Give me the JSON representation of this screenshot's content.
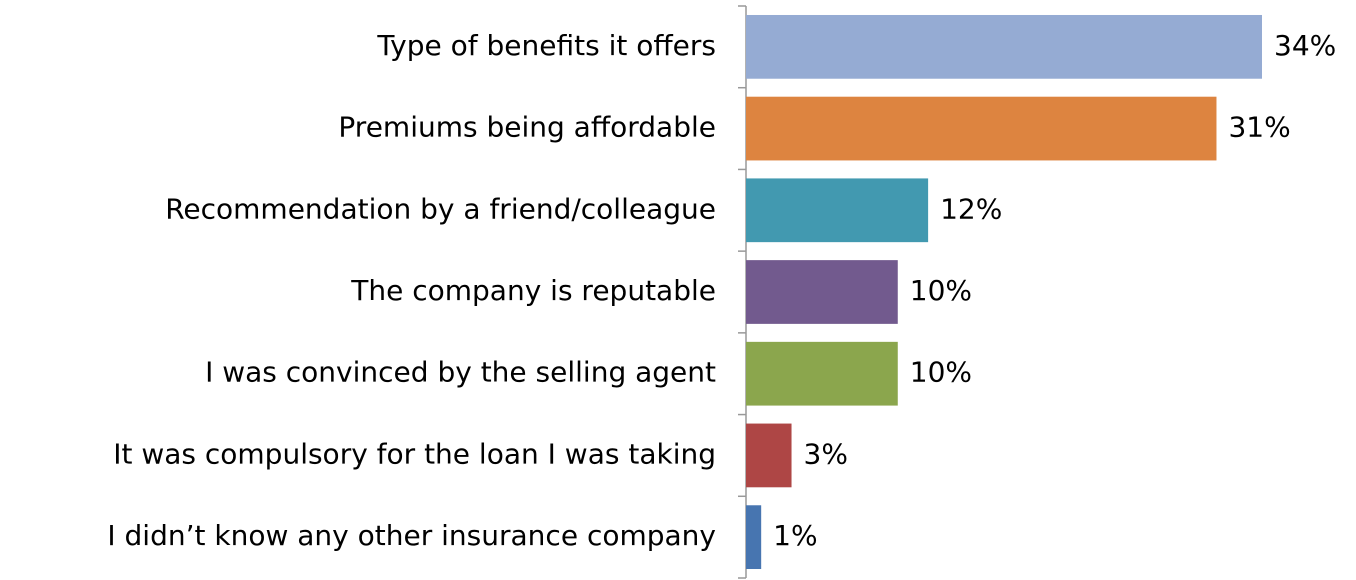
{
  "chart_data": {
    "type": "bar",
    "categories": [
      "Type of benefits it offers",
      "Premiums being affordable",
      "Recommendation by a friend/colleague",
      "The company is reputable",
      "I was convinced by the selling agent",
      "It was compulsory for the loan I was taking",
      "I didn’t know any other insurance company"
    ],
    "values": [
      34,
      31,
      12,
      10,
      10,
      3,
      1
    ],
    "value_labels": [
      "34%",
      "31%",
      "12%",
      "10%",
      "10%",
      "3%",
      "1%"
    ],
    "colors": [
      "#95abd3",
      "#dd8440",
      "#4299b0",
      "#725a8e",
      "#8ba64d",
      "#ae4645",
      "#4775b0"
    ]
  }
}
